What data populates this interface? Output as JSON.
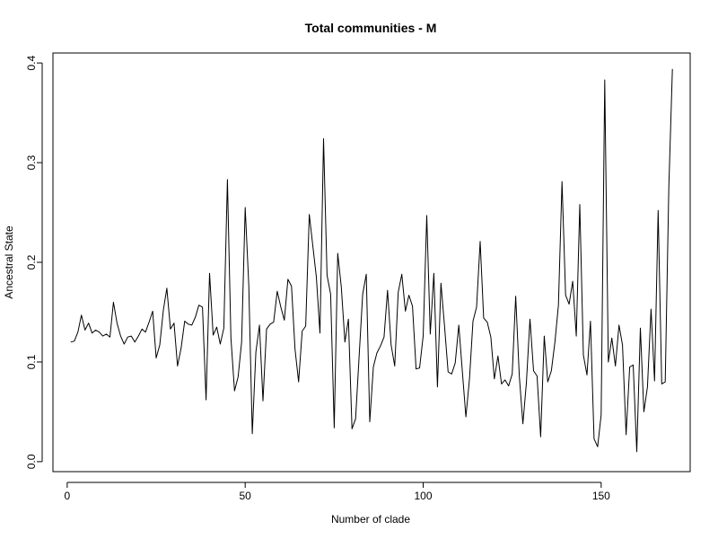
{
  "chart_data": {
    "type": "line",
    "title": "Total communities - M",
    "xlabel": "Number of clade",
    "ylabel": "Ancestral State",
    "xlim": [
      -4,
      175
    ],
    "ylim": [
      -0.01,
      0.41
    ],
    "x_ticks": [
      0,
      50,
      100,
      150
    ],
    "x_tick_labels": [
      "0",
      "50",
      "100",
      "150"
    ],
    "y_ticks": [
      0.0,
      0.1,
      0.2,
      0.3,
      0.4
    ],
    "y_tick_labels": [
      "0.0",
      "0.1",
      "0.2",
      "0.3",
      "0.4"
    ],
    "grid": false,
    "line_color": "#000000",
    "series": [
      {
        "x": [
          1,
          2,
          3,
          4,
          5,
          6,
          7,
          8,
          9,
          10,
          11,
          12,
          13,
          14,
          15,
          16,
          17,
          18,
          19,
          20,
          21,
          22,
          23,
          24,
          25,
          26,
          27,
          28,
          29,
          30,
          31,
          32,
          33,
          34,
          35,
          36,
          37,
          38,
          39,
          40,
          41,
          42,
          43,
          44,
          45,
          46,
          47,
          48,
          49,
          50,
          51,
          52,
          53,
          54,
          55,
          56,
          57,
          58,
          59,
          60,
          61,
          62,
          63,
          64,
          65,
          66,
          67,
          68,
          69,
          70,
          71,
          72,
          73,
          74,
          75,
          76,
          77,
          78,
          79,
          80,
          81,
          82,
          83,
          84,
          85,
          86,
          87,
          88,
          89,
          90,
          91,
          92,
          93,
          94,
          95,
          96,
          97,
          98,
          99,
          100,
          101,
          102,
          103,
          104,
          105,
          106,
          107,
          108,
          109,
          110,
          111,
          112,
          113,
          114,
          115,
          116,
          117,
          118,
          119,
          120,
          121,
          122,
          123,
          124,
          125,
          126,
          127,
          128,
          129,
          130,
          131,
          132,
          133,
          134,
          135,
          136,
          137,
          138,
          139,
          140,
          141,
          142,
          143,
          144,
          145,
          146,
          147,
          148,
          149,
          150,
          151,
          152,
          153,
          154,
          155,
          156,
          157,
          158,
          159,
          160,
          161,
          162,
          163,
          164,
          165,
          166,
          167,
          168,
          169,
          170
        ],
        "values": [
          0.12,
          0.121,
          0.13,
          0.147,
          0.132,
          0.139,
          0.129,
          0.132,
          0.13,
          0.126,
          0.128,
          0.125,
          0.16,
          0.139,
          0.126,
          0.118,
          0.125,
          0.126,
          0.12,
          0.126,
          0.133,
          0.13,
          0.14,
          0.151,
          0.104,
          0.117,
          0.152,
          0.174,
          0.133,
          0.139,
          0.096,
          0.114,
          0.141,
          0.138,
          0.137,
          0.145,
          0.157,
          0.155,
          0.062,
          0.189,
          0.127,
          0.135,
          0.118,
          0.134,
          0.283,
          0.124,
          0.071,
          0.085,
          0.12,
          0.255,
          0.177,
          0.028,
          0.11,
          0.137,
          0.061,
          0.133,
          0.138,
          0.14,
          0.171,
          0.155,
          0.142,
          0.183,
          0.176,
          0.113,
          0.08,
          0.131,
          0.136,
          0.248,
          0.216,
          0.185,
          0.129,
          0.324,
          0.187,
          0.168,
          0.034,
          0.209,
          0.175,
          0.12,
          0.143,
          0.033,
          0.043,
          0.105,
          0.168,
          0.188,
          0.04,
          0.095,
          0.109,
          0.116,
          0.125,
          0.172,
          0.117,
          0.096,
          0.17,
          0.188,
          0.151,
          0.167,
          0.156,
          0.093,
          0.094,
          0.126,
          0.247,
          0.128,
          0.189,
          0.075,
          0.179,
          0.136,
          0.09,
          0.088,
          0.099,
          0.137,
          0.091,
          0.045,
          0.083,
          0.141,
          0.155,
          0.221,
          0.144,
          0.14,
          0.125,
          0.083,
          0.106,
          0.078,
          0.082,
          0.076,
          0.088,
          0.166,
          0.086,
          0.038,
          0.079,
          0.143,
          0.091,
          0.086,
          0.025,
          0.126,
          0.08,
          0.091,
          0.12,
          0.157,
          0.281,
          0.167,
          0.158,
          0.181,
          0.126,
          0.258,
          0.107,
          0.087,
          0.141,
          0.023,
          0.015,
          0.047,
          0.383,
          0.1,
          0.124,
          0.096,
          0.137,
          0.117,
          0.027,
          0.095,
          0.097,
          0.01,
          0.134,
          0.05,
          0.075,
          0.153,
          0.081,
          0.252,
          0.078,
          0.08,
          0.275,
          0.394
        ]
      }
    ]
  }
}
